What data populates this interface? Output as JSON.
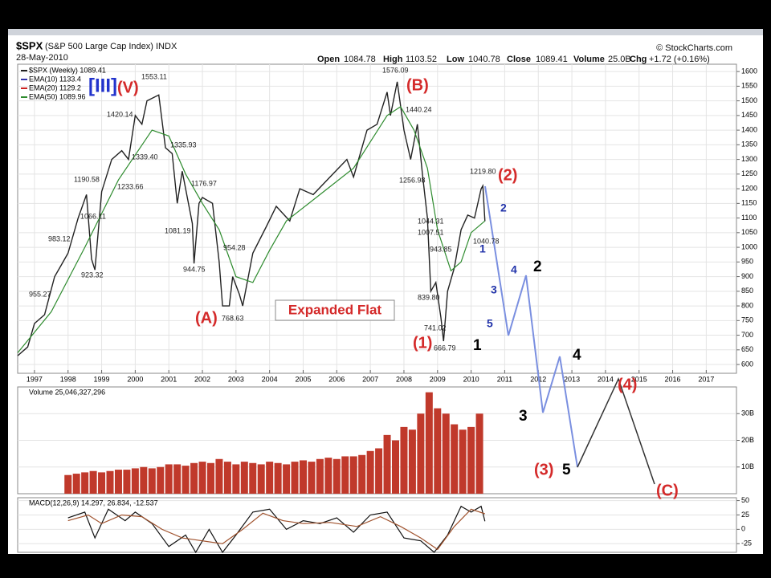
{
  "header": {
    "symbol": "$SPX",
    "name": "(S&P 500 Large Cap Index) INDX",
    "date": "28-May-2010",
    "source": "© StockCharts.com",
    "quote": [
      {
        "label": "Open",
        "value": 1084.78
      },
      {
        "label": "High",
        "value": 1103.52
      },
      {
        "label": "Low",
        "value": 1040.78
      },
      {
        "label": "Close",
        "value": 1089.41
      },
      {
        "label": "Volume",
        "value": "25.0B"
      },
      {
        "label": "Chg",
        "value": "+1.72 (+0.16%)"
      }
    ]
  },
  "annotations": [
    "[III]",
    "(V)",
    "1553.11",
    "(B)",
    "1576.09",
    "1440.24",
    "1420.14",
    "1339.40",
    "1335.93",
    "1190.58",
    "1233.66",
    "1176.97",
    "1066.11",
    "983.12",
    "923.32",
    "955.27",
    "1081.19",
    "944.75",
    "954.28",
    "768.63",
    "(A)",
    "1256.98",
    "1219.80",
    "(2)",
    "2",
    "1044.31",
    "1007.51",
    "1040.78",
    "943.85",
    "1",
    "839.80",
    "741.02",
    "666.79",
    "(1)",
    "1",
    "4",
    "3",
    "5",
    "2",
    "4",
    "3",
    "(3)",
    "5",
    "(4)",
    "(C)",
    "Expanded Flat"
  ],
  "chart_data": [
    {
      "type": "line",
      "series": [
        {
          "name": "$SPX (Weekly) 1089.41",
          "color": "#222222",
          "x": [
            1996.5,
            1996.8,
            1997.0,
            1997.3,
            1997.6,
            1997.8,
            1998.0,
            1998.3,
            1998.55,
            1998.7,
            1998.8,
            1999.0,
            1999.3,
            1999.6,
            1999.8,
            2000.0,
            2000.2,
            2000.35,
            2000.7,
            2000.9,
            2001.1,
            2001.25,
            2001.4,
            2001.7,
            2001.75,
            2001.9,
            2002.0,
            2002.3,
            2002.5,
            2002.6,
            2002.8,
            2002.9,
            2003.1,
            2003.2,
            2003.5,
            2003.9,
            2004.2,
            2004.6,
            2004.9,
            2005.3,
            2005.8,
            2006.3,
            2006.5,
            2006.9,
            2007.2,
            2007.5,
            2007.6,
            2007.8,
            2008.0,
            2008.2,
            2008.4,
            2008.55,
            2008.7,
            2008.8,
            2008.95,
            2009.1,
            2009.18,
            2009.3,
            2009.5,
            2009.7,
            2009.9,
            2010.1,
            2010.3,
            2010.35,
            2010.41
          ],
          "values": [
            630,
            660,
            740,
            770,
            900,
            940,
            980,
            1100,
            1180,
            960,
            923,
            1190,
            1300,
            1330,
            1300,
            1450,
            1420,
            1500,
            1520,
            1340,
            1320,
            1150,
            1260,
            1081,
            945,
            1150,
            1170,
            1150,
            950,
            800,
            800,
            900,
            840,
            800,
            980,
            1070,
            1140,
            1090,
            1200,
            1180,
            1240,
            1300,
            1240,
            1400,
            1420,
            1530,
            1450,
            1565,
            1400,
            1300,
            1420,
            1250,
            1100,
            850,
            880,
            760,
            680,
            850,
            930,
            1060,
            1110,
            1100,
            1200,
            1210,
            1089
          ]
        },
        {
          "name": "EMA(50) 1089.96",
          "color": "#2e8b2e",
          "x": [
            1996.5,
            1997.5,
            1998.5,
            1999.5,
            2000.5,
            2001.0,
            2001.5,
            2002.0,
            2002.5,
            2003.0,
            2003.5,
            2004.0,
            2004.5,
            2005.5,
            2006.5,
            2007.0,
            2007.5,
            2007.9,
            2008.3,
            2008.7,
            2009.0,
            2009.4,
            2009.7,
            2010.0,
            2010.41
          ],
          "values": [
            640,
            780,
            1000,
            1230,
            1400,
            1380,
            1250,
            1150,
            1060,
            900,
            880,
            990,
            1090,
            1180,
            1270,
            1360,
            1450,
            1480,
            1400,
            1270,
            1060,
            920,
            950,
            1050,
            1090
          ]
        }
      ],
      "legend": [
        {
          "name": "EMA(10) 1133.4",
          "color": "#3333aa"
        },
        {
          "name": "EMA(20) 1129.2",
          "color": "#cc2222"
        }
      ],
      "xlim": [
        1996.5,
        2017.9
      ],
      "xticks": [
        1997,
        1998,
        1999,
        2000,
        2001,
        2002,
        2003,
        2004,
        2005,
        2006,
        2007,
        2008,
        2009,
        2010,
        2011,
        2012,
        2013,
        2014,
        2015,
        2016,
        2017
      ],
      "ylim": [
        570,
        1625
      ],
      "yticks": [
        600,
        650,
        700,
        750,
        800,
        850,
        900,
        950,
        1000,
        1050,
        1100,
        1150,
        1200,
        1250,
        1300,
        1350,
        1400,
        1450,
        1500,
        1550,
        1600
      ],
      "grid": true
    },
    {
      "type": "bar",
      "title": "Volume 25,046,327,296",
      "color": "#c0392b",
      "x": [
        1998.0,
        1998.25,
        1998.5,
        1998.75,
        1999.0,
        1999.25,
        1999.5,
        1999.75,
        2000.0,
        2000.25,
        2000.5,
        2000.75,
        2001.0,
        2001.25,
        2001.5,
        2001.75,
        2002.0,
        2002.25,
        2002.5,
        2002.75,
        2003.0,
        2003.25,
        2003.5,
        2003.75,
        2004.0,
        2004.25,
        2004.5,
        2004.75,
        2005.0,
        2005.25,
        2005.5,
        2005.75,
        2006.0,
        2006.25,
        2006.5,
        2006.75,
        2007.0,
        2007.25,
        2007.5,
        2007.75,
        2008.0,
        2008.25,
        2008.5,
        2008.75,
        2009.0,
        2009.25,
        2009.5,
        2009.75,
        2010.0,
        2010.25
      ],
      "values": [
        7,
        7.5,
        8,
        8.5,
        8,
        8.5,
        9,
        9,
        9.5,
        10,
        9.5,
        10,
        11,
        11,
        10.5,
        11.5,
        12,
        11.5,
        13,
        12,
        11,
        12,
        11.5,
        11,
        12,
        11.5,
        11,
        12,
        12.5,
        12,
        13,
        13.5,
        13,
        14,
        14,
        14.5,
        16,
        17,
        22,
        20,
        25,
        24,
        30,
        38,
        32,
        30,
        26,
        24,
        25,
        30
      ],
      "xlim": [
        1996.5,
        2017.9
      ],
      "ylim": [
        0,
        40
      ],
      "yticks": [
        {
          "value": 10,
          "label": "10B"
        },
        {
          "value": 20,
          "label": "20B"
        },
        {
          "value": 30,
          "label": "30B"
        }
      ],
      "grid": true
    },
    {
      "type": "line",
      "title": "MACD(12,26,9) 14.297, 26.834, -12.537",
      "series": [
        {
          "name": "MACD",
          "color": "#111111",
          "x": [
            1998.0,
            1998.5,
            1998.8,
            1999.2,
            1999.7,
            2000.0,
            2000.5,
            2001.0,
            2001.5,
            2001.8,
            2002.2,
            2002.6,
            2003.0,
            2003.5,
            2004.0,
            2004.5,
            2005.0,
            2005.5,
            2006.0,
            2006.5,
            2007.0,
            2007.5,
            2008.0,
            2008.5,
            2008.9,
            2009.3,
            2009.7,
            2010.0,
            2010.3,
            2010.41
          ],
          "values": [
            20,
            30,
            -15,
            35,
            15,
            30,
            10,
            -30,
            -10,
            -40,
            0,
            -40,
            -10,
            30,
            35,
            0,
            15,
            10,
            20,
            -5,
            25,
            30,
            -15,
            -20,
            -40,
            -10,
            40,
            30,
            40,
            14
          ]
        },
        {
          "name": "Signal",
          "color": "#a0522d",
          "x": [
            1998.0,
            1998.6,
            1999.0,
            1999.6,
            2000.2,
            2000.8,
            2001.4,
            2002.0,
            2002.6,
            2003.2,
            2003.8,
            2004.4,
            2005.0,
            2005.8,
            2006.6,
            2007.3,
            2007.9,
            2008.5,
            2009.0,
            2009.5,
            2010.0,
            2010.41
          ],
          "values": [
            15,
            25,
            10,
            25,
            22,
            0,
            -15,
            -20,
            -25,
            0,
            28,
            15,
            10,
            12,
            5,
            22,
            5,
            -15,
            -35,
            5,
            35,
            27
          ]
        }
      ],
      "xlim": [
        1996.5,
        2017.9
      ],
      "ylim": [
        -40,
        55
      ],
      "yticks": [
        50,
        25,
        0,
        -25
      ],
      "grid": true
    }
  ]
}
